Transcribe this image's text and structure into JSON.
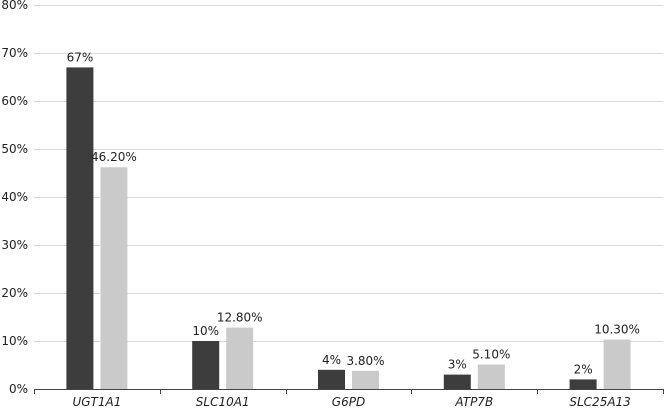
{
  "chart_data": {
    "type": "bar",
    "categories": [
      "UGT1A1",
      "SLC10A1",
      "G6PD",
      "ATP7B",
      "SLC25A13"
    ],
    "series": [
      {
        "color": "#3d3d3d",
        "values": [
          67,
          10,
          4,
          3,
          2
        ],
        "labels": [
          "67%",
          "10%",
          "4%",
          "3%",
          "2%"
        ]
      },
      {
        "color": "#cbcacb",
        "values": [
          46.2,
          12.8,
          3.8,
          5.1,
          10.3
        ],
        "labels": [
          "46.20%",
          "12.80%",
          "3.80%",
          "5.10%",
          "10.30%"
        ]
      }
    ],
    "yticks": [
      0,
      10,
      20,
      30,
      40,
      50,
      60,
      70,
      80
    ],
    "ytick_labels": [
      "0%",
      "10%",
      "20%",
      "30%",
      "40%",
      "50%",
      "60%",
      "70%",
      "80%"
    ],
    "ylim": [
      0,
      80
    ],
    "grid": true,
    "title": "",
    "xlabel": "",
    "ylabel": ""
  }
}
